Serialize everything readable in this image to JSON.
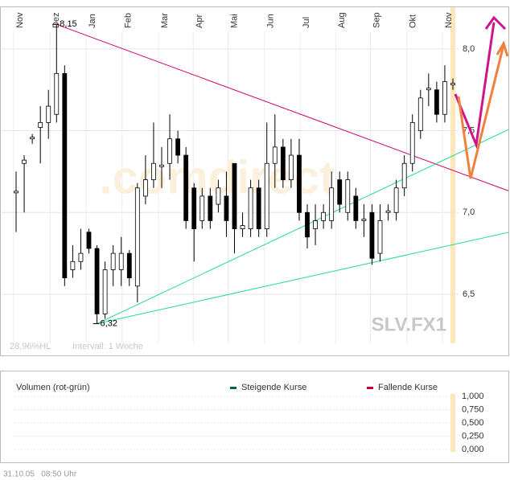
{
  "chart_data": {
    "type": "candlestick",
    "xticks": [
      {
        "value": 0.5,
        "label": "Nov"
      },
      {
        "value": 5,
        "label": "Dez"
      },
      {
        "value": 9.45,
        "label": "Jan"
      },
      {
        "value": 13.9,
        "label": "Feb"
      },
      {
        "value": 18.4,
        "label": "Mar"
      },
      {
        "value": 22.7,
        "label": "Apr"
      },
      {
        "value": 27,
        "label": "Mai"
      },
      {
        "value": 31.5,
        "label": "Jun"
      },
      {
        "value": 35.9,
        "label": "Jul"
      },
      {
        "value": 40.3,
        "label": "Aug"
      },
      {
        "value": 44.6,
        "label": "Sep"
      },
      {
        "value": 49.1,
        "label": "Okt"
      },
      {
        "value": 53.5,
        "label": "Nov"
      }
    ],
    "xlim": [
      0,
      54
    ],
    "ylim": [
      6.2,
      8.25
    ],
    "yticks": [
      {
        "value": 6.5,
        "label": "6,5"
      },
      {
        "value": 7.0,
        "label": "7,0"
      },
      {
        "value": 7.5,
        "label": "7,5"
      },
      {
        "value": 8.0,
        "label": "8,0"
      }
    ],
    "grid": true,
    "up_color": "#ffffff",
    "down_color": "#000000",
    "open": [
      7.12,
      7.3,
      7.45,
      7.52,
      7.55,
      7.6,
      7.85,
      6.65,
      6.7,
      6.88,
      6.78,
      6.38,
      6.65,
      6.65,
      6.75,
      6.55,
      7.1,
      7.2,
      7.28,
      7.3,
      7.45,
      7.35,
      7.15,
      6.95,
      7.1,
      7.05,
      7.1,
      7.3,
      6.9,
      6.9,
      7.15,
      6.9,
      7.3,
      7.4,
      7.2,
      7.35,
      7.0,
      6.9,
      6.95,
      6.95,
      7.2,
      7.0,
      7.1,
      6.95,
      7.0,
      6.75,
      7.0,
      7.0,
      7.15,
      7.3,
      7.5,
      7.75,
      7.75,
      7.6,
      7.78
    ],
    "high": [
      7.25,
      7.35,
      7.48,
      7.65,
      7.75,
      8.15,
      7.9,
      6.8,
      6.9,
      6.9,
      6.8,
      6.7,
      6.8,
      6.85,
      6.77,
      7.18,
      7.35,
      7.55,
      7.4,
      7.6,
      7.5,
      7.4,
      7.18,
      7.15,
      7.15,
      7.2,
      7.25,
      7.3,
      7.0,
      7.2,
      7.2,
      7.55,
      7.6,
      7.45,
      7.45,
      7.45,
      7.05,
      7.05,
      7.05,
      7.25,
      7.25,
      7.25,
      7.15,
      7.05,
      7.05,
      7.05,
      7.05,
      7.2,
      7.35,
      7.6,
      7.75,
      7.85,
      7.8,
      7.9,
      7.82
    ],
    "low": [
      6.88,
      7.0,
      7.42,
      7.3,
      7.45,
      7.55,
      6.55,
      6.6,
      6.65,
      6.75,
      6.32,
      6.35,
      6.55,
      6.55,
      6.55,
      6.45,
      7.05,
      7.15,
      7.15,
      7.2,
      7.3,
      6.9,
      6.7,
      6.9,
      6.9,
      7.0,
      6.85,
      6.75,
      6.85,
      6.85,
      6.85,
      6.85,
      7.15,
      7.15,
      7.15,
      6.95,
      6.78,
      6.8,
      6.9,
      6.9,
      7.0,
      6.95,
      6.9,
      6.85,
      6.68,
      6.7,
      6.95,
      6.95,
      7.1,
      7.25,
      7.45,
      7.65,
      7.55,
      7.55,
      7.75
    ],
    "close": [
      7.13,
      7.32,
      7.46,
      7.55,
      7.65,
      7.85,
      6.6,
      6.7,
      6.75,
      6.78,
      6.38,
      6.65,
      6.75,
      6.75,
      6.6,
      7.15,
      7.2,
      7.3,
      7.29,
      7.45,
      7.35,
      6.95,
      6.9,
      7.1,
      6.95,
      7.15,
      6.95,
      6.9,
      6.92,
      7.15,
      6.9,
      7.3,
      7.4,
      7.2,
      7.35,
      7.0,
      6.85,
      6.95,
      7.0,
      7.15,
      7.05,
      7.2,
      6.95,
      6.96,
      6.72,
      6.95,
      7.01,
      7.15,
      7.3,
      7.55,
      7.7,
      7.76,
      7.6,
      7.8,
      7.79
    ],
    "high_label": {
      "index": 5,
      "value": 8.15,
      "label": "8,15"
    },
    "low_label": {
      "index": 10,
      "value": 6.32,
      "label": "6,32"
    },
    "trendlines": [
      {
        "color": "#d0006f",
        "from": [
          5,
          8.15
        ],
        "to": [
          61,
          7.13
        ]
      },
      {
        "color": "#22dd88",
        "from": [
          10,
          6.32
        ],
        "to": [
          61,
          7.51
        ]
      },
      {
        "color": "#22dd88",
        "from": [
          10,
          6.32
        ],
        "to": [
          61,
          6.88
        ]
      }
    ],
    "symbol": "SLV.FX1",
    "range_info": "28,96%HL",
    "interval": "Intervall: 1 Woche",
    "watermark": ".comdirect"
  },
  "volume": {
    "title": "Volumen (rot-grün)",
    "legend": [
      {
        "name": "Steigende Kurse",
        "color": "#006633"
      },
      {
        "name": "Fallende Kurse",
        "color": "#cc0033"
      }
    ],
    "ylim": [
      0,
      1
    ],
    "yticks": [
      {
        "value": 0,
        "label": "0,000"
      },
      {
        "value": 0.25,
        "label": "0,250"
      },
      {
        "value": 0.5,
        "label": "0,500"
      },
      {
        "value": 0.75,
        "label": "0,750"
      },
      {
        "value": 1,
        "label": "1,000"
      }
    ]
  },
  "footer": "31.10.05   08:50 Uhr"
}
